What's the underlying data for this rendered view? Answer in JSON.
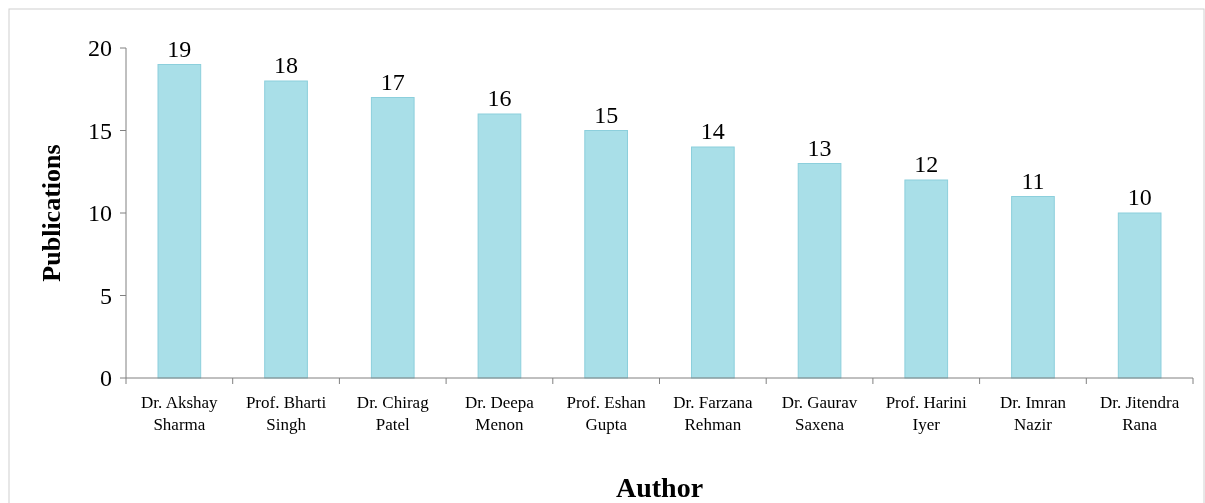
{
  "chart_data": {
    "type": "bar",
    "xlabel": "Author",
    "ylabel": "Publications",
    "categories": [
      "Dr. Akshay Sharma",
      "Prof. Bharti Singh",
      "Dr. Chirag Patel",
      "Dr. Deepa Menon",
      "Prof. Eshan Gupta",
      "Dr. Farzana Rehman",
      "Dr. Gaurav Saxena",
      "Prof. Harini Iyer",
      "Dr. Imran Nazir",
      "Dr. Jitendra Rana"
    ],
    "values": [
      19,
      18,
      17,
      16,
      15,
      14,
      13,
      12,
      11,
      10
    ],
    "color": "#a9dfe8",
    "ylim": [
      0,
      20
    ],
    "yticks": [
      0,
      5,
      10,
      15,
      20
    ],
    "data_labels": true
  }
}
